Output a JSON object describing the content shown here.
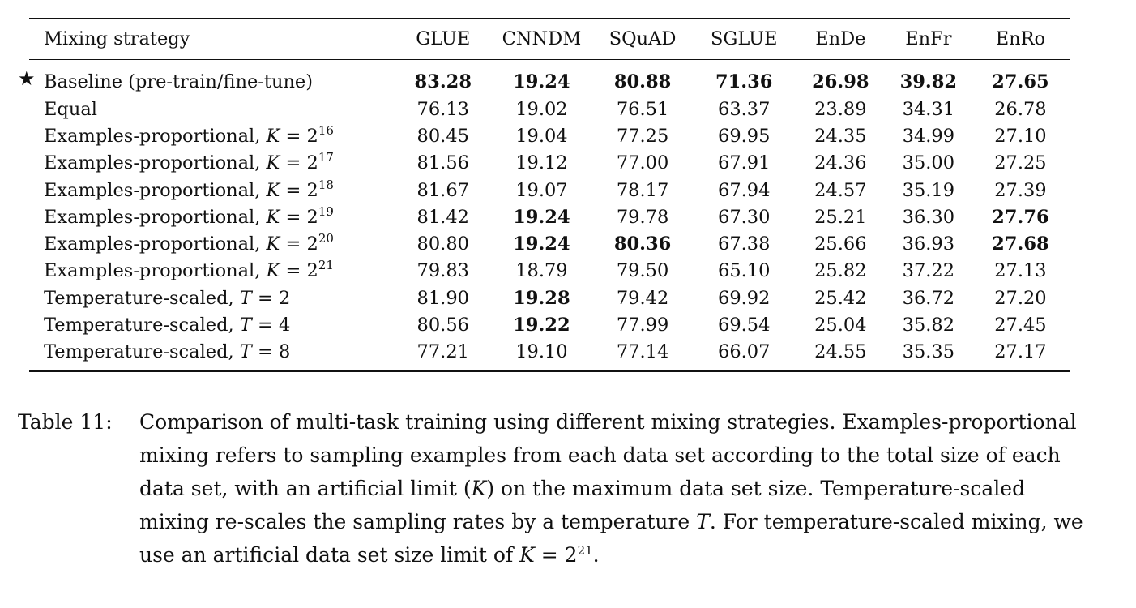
{
  "table": {
    "headers": [
      "Mixing strategy",
      "GLUE",
      "CNNDM",
      "SQuAD",
      "SGLUE",
      "EnDe",
      "EnFr",
      "EnRo"
    ],
    "rows": [
      {
        "star": "★",
        "prefix": "Baseline (pre-train/fine-tune)",
        "var": "",
        "eq": "",
        "base": "",
        "exp": "",
        "values": [
          "83.28",
          "19.24",
          "80.88",
          "71.36",
          "26.98",
          "39.82",
          "27.65"
        ],
        "bold": [
          true,
          true,
          true,
          true,
          true,
          true,
          true
        ]
      },
      {
        "star": "",
        "prefix": "Equal",
        "var": "",
        "eq": "",
        "base": "",
        "exp": "",
        "values": [
          "76.13",
          "19.02",
          "76.51",
          "63.37",
          "23.89",
          "34.31",
          "26.78"
        ],
        "bold": [
          false,
          false,
          false,
          false,
          false,
          false,
          false
        ]
      },
      {
        "star": "",
        "prefix": "Examples-proportional, ",
        "var": "K",
        "eq": " = ",
        "base": "2",
        "exp": "16",
        "values": [
          "80.45",
          "19.04",
          "77.25",
          "69.95",
          "24.35",
          "34.99",
          "27.10"
        ],
        "bold": [
          false,
          false,
          false,
          false,
          false,
          false,
          false
        ]
      },
      {
        "star": "",
        "prefix": "Examples-proportional, ",
        "var": "K",
        "eq": " = ",
        "base": "2",
        "exp": "17",
        "values": [
          "81.56",
          "19.12",
          "77.00",
          "67.91",
          "24.36",
          "35.00",
          "27.25"
        ],
        "bold": [
          false,
          false,
          false,
          false,
          false,
          false,
          false
        ]
      },
      {
        "star": "",
        "prefix": "Examples-proportional, ",
        "var": "K",
        "eq": " = ",
        "base": "2",
        "exp": "18",
        "values": [
          "81.67",
          "19.07",
          "78.17",
          "67.94",
          "24.57",
          "35.19",
          "27.39"
        ],
        "bold": [
          false,
          false,
          false,
          false,
          false,
          false,
          false
        ]
      },
      {
        "star": "",
        "prefix": "Examples-proportional, ",
        "var": "K",
        "eq": " = ",
        "base": "2",
        "exp": "19",
        "values": [
          "81.42",
          "19.24",
          "79.78",
          "67.30",
          "25.21",
          "36.30",
          "27.76"
        ],
        "bold": [
          false,
          true,
          false,
          false,
          false,
          false,
          true
        ]
      },
      {
        "star": "",
        "prefix": "Examples-proportional, ",
        "var": "K",
        "eq": " = ",
        "base": "2",
        "exp": "20",
        "values": [
          "80.80",
          "19.24",
          "80.36",
          "67.38",
          "25.66",
          "36.93",
          "27.68"
        ],
        "bold": [
          false,
          true,
          true,
          false,
          false,
          false,
          true
        ]
      },
      {
        "star": "",
        "prefix": "Examples-proportional, ",
        "var": "K",
        "eq": " = ",
        "base": "2",
        "exp": "21",
        "values": [
          "79.83",
          "18.79",
          "79.50",
          "65.10",
          "25.82",
          "37.22",
          "27.13"
        ],
        "bold": [
          false,
          false,
          false,
          false,
          false,
          false,
          false
        ]
      },
      {
        "star": "",
        "prefix": "Temperature-scaled, ",
        "var": "T",
        "eq": " = ",
        "base": "2",
        "exp": "",
        "values": [
          "81.90",
          "19.28",
          "79.42",
          "69.92",
          "25.42",
          "36.72",
          "27.20"
        ],
        "bold": [
          false,
          true,
          false,
          false,
          false,
          false,
          false
        ]
      },
      {
        "star": "",
        "prefix": "Temperature-scaled, ",
        "var": "T",
        "eq": " = ",
        "base": "4",
        "exp": "",
        "values": [
          "80.56",
          "19.22",
          "77.99",
          "69.54",
          "25.04",
          "35.82",
          "27.45"
        ],
        "bold": [
          false,
          true,
          false,
          false,
          false,
          false,
          false
        ]
      },
      {
        "star": "",
        "prefix": "Temperature-scaled, ",
        "var": "T",
        "eq": " = ",
        "base": "8",
        "exp": "",
        "values": [
          "77.21",
          "19.10",
          "77.14",
          "66.07",
          "24.55",
          "35.35",
          "27.17"
        ],
        "bold": [
          false,
          false,
          false,
          false,
          false,
          false,
          false
        ]
      }
    ]
  },
  "caption": {
    "label": "Table 11:",
    "s1": "Comparison of multi-task training using different mixing strategies. Examples-proportional mixing refers to sampling examples from each data set according to the total size of each data set, with an artificial limit (",
    "v1": "K",
    "s2": ") on the maximum data set size. Temperature-scaled mixing re-scales the sampling rates by a temperature ",
    "v2": "T",
    "s3": ". For temperature-scaled mixing, we use an artificial data set size limit of ",
    "v3": "K",
    "s4": " = 2",
    "exp": "21",
    "s5": "."
  }
}
